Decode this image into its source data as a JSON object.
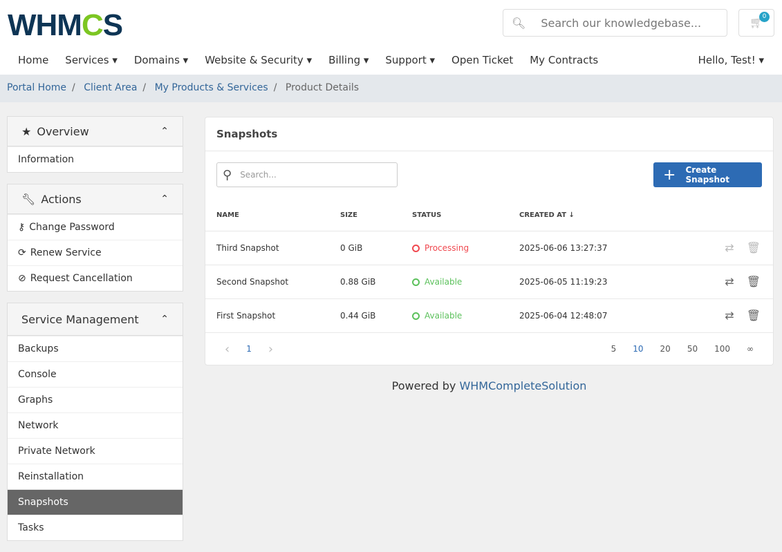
{
  "logo": {
    "text_a": "WHM",
    "text_b": "C",
    "text_c": "S"
  },
  "search": {
    "placeholder": "Search our knowledgebase..."
  },
  "cart": {
    "count": "0"
  },
  "nav": [
    "Home",
    "Services ▾",
    "Domains ▾",
    "Website & Security ▾",
    "Billing ▾",
    "Support ▾",
    "Open Ticket",
    "My Contracts"
  ],
  "user": "Hello, Test! ▾",
  "breadcrumb": [
    "Portal Home",
    "Client Area",
    "My Products & Services",
    "Product Details"
  ],
  "sidebar": {
    "overview": {
      "title": "Overview",
      "items": [
        "Information"
      ]
    },
    "actions": {
      "title": "Actions",
      "items": [
        "Change Password",
        "Renew Service",
        "Request Cancellation"
      ]
    },
    "service": {
      "title": "Service Management",
      "items": [
        "Backups",
        "Console",
        "Graphs",
        "Network",
        "Private Network",
        "Reinstallation",
        "Snapshots",
        "Tasks"
      ],
      "active": "Snapshots"
    }
  },
  "main": {
    "title": "Snapshots",
    "search_placeholder": "Search...",
    "create_label": "Create Snapshot",
    "columns": [
      "NAME",
      "SIZE",
      "STATUS",
      "CREATED AT ↓"
    ],
    "rows": [
      {
        "name": "Third Snapshot",
        "size": "0 GiB",
        "status": "Processing",
        "created": "2025-06-06 13:27:37"
      },
      {
        "name": "Second Snapshot",
        "size": "0.88 GiB",
        "status": "Available",
        "created": "2025-06-05 11:19:23"
      },
      {
        "name": "First Snapshot",
        "size": "0.44 GiB",
        "status": "Available",
        "created": "2025-06-04 12:48:07"
      }
    ],
    "pagination": {
      "prev": "‹",
      "page": "1",
      "next": "›",
      "sizes": [
        "5",
        "10",
        "20",
        "50",
        "100",
        "∞"
      ],
      "active_size": "10"
    }
  },
  "colors": {
    "processing": "#f0484f",
    "available": "#5cc15c",
    "primary": "#2d6bb4"
  },
  "footer": {
    "text": "Powered by ",
    "link": "WHMCompleteSolution"
  }
}
